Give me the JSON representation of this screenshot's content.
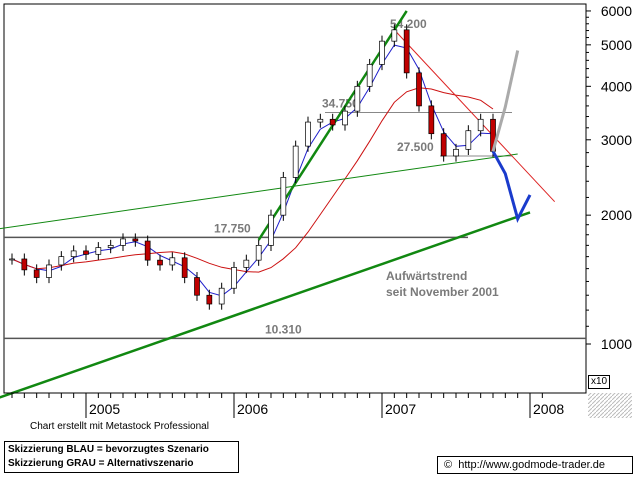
{
  "chart_data": {
    "type": "candlestick",
    "title": "",
    "xlabel": "",
    "ylabel": "",
    "y_scale": "log",
    "y_ticks": [
      "6000",
      "5000",
      "4000",
      "3000",
      "2000",
      "1000"
    ],
    "x_ticks": [
      "2005",
      "2006",
      "2007",
      "2008"
    ],
    "y_multiplier": "x10",
    "price_levels": [
      {
        "label": "54.200",
        "value": 5420
      },
      {
        "label": "34.750",
        "value": 3475
      },
      {
        "label": "27.500",
        "value": 2750
      },
      {
        "label": "17.750",
        "value": 1775
      },
      {
        "label": "10.310",
        "value": 1031
      }
    ],
    "trend_label": [
      "Aufwärtstrend",
      "seit November 2001"
    ],
    "price_path": [
      {
        "x": "2004-07",
        "y": 1580
      },
      {
        "x": "2004-08",
        "y": 1490
      },
      {
        "x": "2004-09",
        "y": 1430
      },
      {
        "x": "2004-10",
        "y": 1530
      },
      {
        "x": "2004-11",
        "y": 1600
      },
      {
        "x": "2004-12",
        "y": 1650
      },
      {
        "x": "2005-01",
        "y": 1620
      },
      {
        "x": "2005-02",
        "y": 1680
      },
      {
        "x": "2005-03",
        "y": 1700
      },
      {
        "x": "2005-04",
        "y": 1760
      },
      {
        "x": "2005-05",
        "y": 1740
      },
      {
        "x": "2005-06",
        "y": 1570
      },
      {
        "x": "2005-07",
        "y": 1530
      },
      {
        "x": "2005-08",
        "y": 1590
      },
      {
        "x": "2005-09",
        "y": 1430
      },
      {
        "x": "2005-10",
        "y": 1300
      },
      {
        "x": "2005-11",
        "y": 1240
      },
      {
        "x": "2005-12",
        "y": 1350
      },
      {
        "x": "2006-01",
        "y": 1510
      },
      {
        "x": "2006-02",
        "y": 1570
      },
      {
        "x": "2006-03",
        "y": 1700
      },
      {
        "x": "2006-04",
        "y": 2000
      },
      {
        "x": "2006-05",
        "y": 2450
      },
      {
        "x": "2006-06",
        "y": 2900
      },
      {
        "x": "2006-07",
        "y": 3300
      },
      {
        "x": "2006-08",
        "y": 3350
      },
      {
        "x": "2006-09",
        "y": 3250
      },
      {
        "x": "2006-10",
        "y": 3500
      },
      {
        "x": "2006-11",
        "y": 4000
      },
      {
        "x": "2006-12",
        "y": 4500
      },
      {
        "x": "2007-01",
        "y": 5100
      },
      {
        "x": "2007-02",
        "y": 5420
      },
      {
        "x": "2007-03",
        "y": 4300
      },
      {
        "x": "2007-04",
        "y": 3600
      },
      {
        "x": "2007-05",
        "y": 3100
      },
      {
        "x": "2007-06",
        "y": 2750
      },
      {
        "x": "2007-07",
        "y": 2850
      },
      {
        "x": "2007-08",
        "y": 3150
      },
      {
        "x": "2007-09",
        "y": 3350
      },
      {
        "x": "2007-10",
        "y": 2820
      }
    ],
    "scenario_blue": [
      {
        "x": "2007-11",
        "y": 2500
      },
      {
        "x": "2007-12",
        "y": 1960
      },
      {
        "x": "2008-01",
        "y": 2230
      }
    ],
    "scenario_grey": [
      {
        "x": "2007-11",
        "y": 3580
      },
      {
        "x": "2007-12",
        "y": 4850
      }
    ],
    "colors": {
      "candle_up": "#ffffff",
      "candle_down": "#c00000",
      "trend_green": "#118811",
      "ma_blue": "#2020cc",
      "ma_red": "#cc1111",
      "scenario_blue": "#1a3bcc",
      "scenario_grey": "#aaaaaa",
      "resistance_red": "#dd2222"
    }
  },
  "footer": {
    "credit": "Chart erstellt mit Metastock Professional",
    "legend_line1": "Skizzierung BLAU = bevorzugtes Szenario",
    "legend_line2": "Skizzierung GRAU = Alternativszenario",
    "website": "http://www.godmode-trader.de",
    "copyright_symbol": "©",
    "multiplier": "x10"
  }
}
